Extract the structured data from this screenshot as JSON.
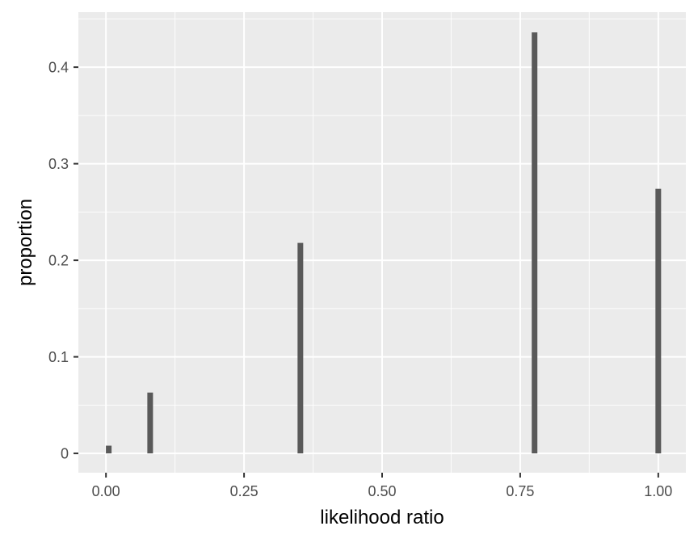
{
  "chart_data": {
    "type": "bar",
    "xlabel": "likelihood ratio",
    "ylabel": "proportion",
    "xlim": [
      -0.05,
      1.05
    ],
    "ylim": [
      -0.02,
      0.457
    ],
    "x_ticks": [
      0,
      0.25,
      0.5,
      0.75,
      1
    ],
    "x_tick_labels": [
      "0.00",
      "0.25",
      "0.50",
      "0.75",
      "1.00"
    ],
    "y_ticks": [
      0,
      0.1,
      0.2,
      0.3,
      0.4
    ],
    "y_tick_labels": [
      "0",
      "0.1",
      "0.2",
      "0.3",
      "0.4"
    ],
    "bars": [
      {
        "x": 0.005,
        "value": 0.008
      },
      {
        "x": 0.08,
        "value": 0.063
      },
      {
        "x": 0.352,
        "value": 0.218
      },
      {
        "x": 0.776,
        "value": 0.436
      },
      {
        "x": 1.0,
        "value": 0.274
      }
    ],
    "grid": true,
    "colors": {
      "panel_background": "#ebebeb",
      "grid_major": "#ffffff",
      "bar_fill": "#595959",
      "tick_label": "#4d4d4d",
      "axis_title": "#000000"
    }
  }
}
